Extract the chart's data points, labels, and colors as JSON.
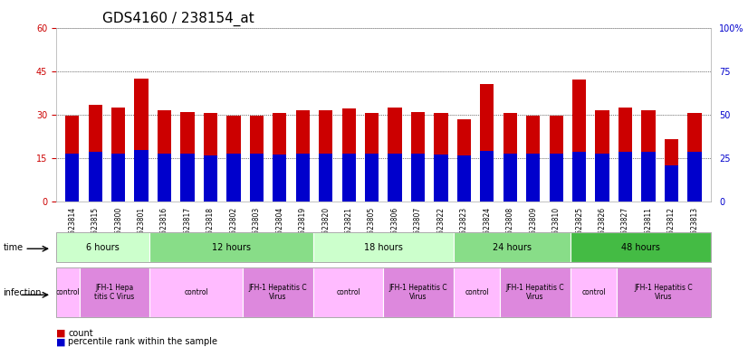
{
  "title": "GDS4160 / 238154_at",
  "samples": [
    "GSM523814",
    "GSM523815",
    "GSM523800",
    "GSM523801",
    "GSM523816",
    "GSM523817",
    "GSM523818",
    "GSM523802",
    "GSM523803",
    "GSM523804",
    "GSM523819",
    "GSM523820",
    "GSM523821",
    "GSM523805",
    "GSM523806",
    "GSM523807",
    "GSM523822",
    "GSM523823",
    "GSM523824",
    "GSM523808",
    "GSM523809",
    "GSM523810",
    "GSM523825",
    "GSM523826",
    "GSM523827",
    "GSM523811",
    "GSM523812",
    "GSM523813"
  ],
  "count_values": [
    29.5,
    33.5,
    32.5,
    42.5,
    31.5,
    31.0,
    30.5,
    29.5,
    29.5,
    30.5,
    31.5,
    31.5,
    32.0,
    30.5,
    32.5,
    31.0,
    30.5,
    28.5,
    40.5,
    30.5,
    29.5,
    29.5,
    42.0,
    31.5,
    32.5,
    31.5,
    21.5,
    30.5
  ],
  "percentile_values": [
    27.5,
    28.5,
    27.5,
    29.5,
    27.5,
    27.5,
    26.5,
    27.5,
    27.5,
    27.0,
    27.5,
    27.5,
    27.5,
    27.5,
    27.5,
    27.5,
    27.0,
    26.5,
    29.0,
    27.5,
    27.5,
    27.5,
    28.5,
    27.5,
    28.5,
    28.5,
    20.5,
    28.5
  ],
  "count_color": "#cc0000",
  "percentile_color": "#0000cc",
  "bar_width": 0.6,
  "ylim_left": [
    0,
    60
  ],
  "ylim_right": [
    0,
    100
  ],
  "yticks_left": [
    0,
    15,
    30,
    45,
    60
  ],
  "yticks_right": [
    0,
    25,
    50,
    75,
    100
  ],
  "ytick_labels_left": [
    "0",
    "15",
    "30",
    "45",
    "60"
  ],
  "ytick_labels_right": [
    "0",
    "25",
    "50",
    "75",
    "100%"
  ],
  "grid_color": "#000000",
  "bg_color": "#ffffff",
  "plot_bg": "#ffffff",
  "time_groups": [
    {
      "label": "6 hours",
      "start": 0,
      "end": 3,
      "color": "#ccffcc"
    },
    {
      "label": "12 hours",
      "start": 4,
      "end": 10,
      "color": "#88dd88"
    },
    {
      "label": "18 hours",
      "start": 11,
      "end": 16,
      "color": "#ccffcc"
    },
    {
      "label": "24 hours",
      "start": 17,
      "end": 21,
      "color": "#88dd88"
    },
    {
      "label": "48 hours",
      "start": 22,
      "end": 27,
      "color": "#44bb44"
    }
  ],
  "infection_groups": [
    {
      "label": "control",
      "start": 0,
      "end": 0,
      "color": "#ffbbff"
    },
    {
      "label": "JFH-1 Hepa\ntitis C Virus",
      "start": 1,
      "end": 3,
      "color": "#dd88dd"
    },
    {
      "label": "control",
      "start": 4,
      "end": 7,
      "color": "#ffbbff"
    },
    {
      "label": "JFH-1 Hepatitis C\nVirus",
      "start": 8,
      "end": 10,
      "color": "#dd88dd"
    },
    {
      "label": "control",
      "start": 11,
      "end": 13,
      "color": "#ffbbff"
    },
    {
      "label": "JFH-1 Hepatitis C\nVirus",
      "start": 14,
      "end": 16,
      "color": "#dd88dd"
    },
    {
      "label": "control",
      "start": 17,
      "end": 18,
      "color": "#ffbbff"
    },
    {
      "label": "JFH-1 Hepatitis C\nVirus",
      "start": 19,
      "end": 21,
      "color": "#dd88dd"
    },
    {
      "label": "control",
      "start": 22,
      "end": 23,
      "color": "#ffbbff"
    },
    {
      "label": "JFH-1 Hepatitis C\nVirus",
      "start": 24,
      "end": 27,
      "color": "#dd88dd"
    }
  ],
  "legend_items": [
    {
      "label": "count",
      "color": "#cc0000"
    },
    {
      "label": "percentile rank within the sample",
      "color": "#0000cc"
    }
  ],
  "title_fontsize": 11,
  "tick_fontsize": 7,
  "label_fontsize": 8
}
